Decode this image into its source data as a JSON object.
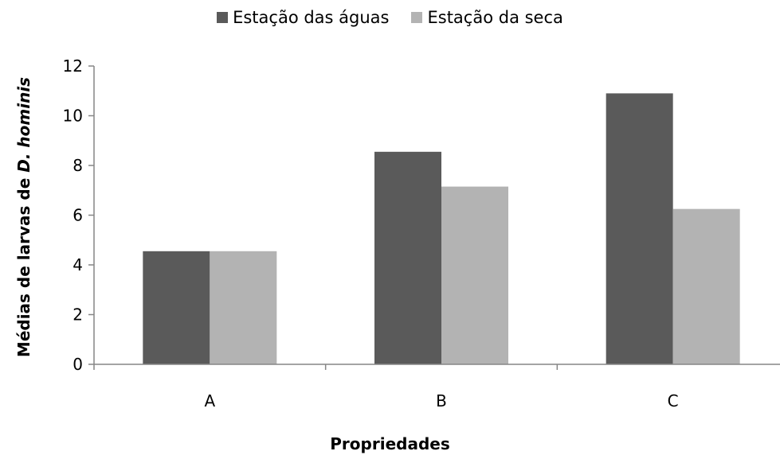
{
  "colors": {
    "series1": "#5a5a5a",
    "series2": "#b3b3b3",
    "axis": "#868686"
  },
  "chart_data": {
    "type": "bar",
    "categories": [
      "A",
      "B",
      "C"
    ],
    "series": [
      {
        "name": "Estação das águas",
        "values": [
          4.55,
          8.55,
          10.9
        ]
      },
      {
        "name": "Estação da seca",
        "values": [
          4.55,
          7.15,
          6.25
        ]
      }
    ],
    "xlabel": "Propriedades",
    "ylabel_prefix": "Médias de larvas de ",
    "ylabel_italic": "D. hominis",
    "ylim": [
      0,
      12
    ],
    "yticks": [
      "0",
      "2",
      "4",
      "6",
      "8",
      "10",
      "12"
    ],
    "legend_position": "top",
    "grid": false
  }
}
